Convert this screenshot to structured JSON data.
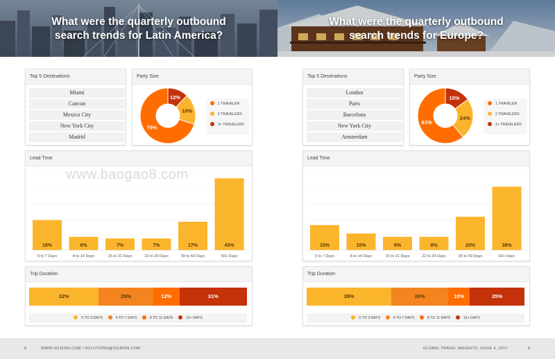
{
  "left": {
    "title": "What were the quarterly outbound search trends for Latin America?",
    "top5": {
      "label": "Top 5 Destinations",
      "items": [
        "Miami",
        "Cancun",
        "Mexico City",
        "New York City",
        "Madrid"
      ]
    },
    "party": {
      "label": "Party Size",
      "slices": [
        {
          "name": "1 TRAVELER",
          "value": 70,
          "label": "70%"
        },
        {
          "name": "2 TRAVELERS",
          "value": 18,
          "label": "18%"
        },
        {
          "name": "3+ TRAVELERS",
          "value": 12,
          "label": "12%"
        }
      ]
    },
    "lead": {
      "label": "Lead Time",
      "chart_data": {
        "type": "bar",
        "categories": [
          "0 to 7 Days",
          "8 to 14 Days",
          "15 to 21 Days",
          "22 to 29 Days",
          "30 to 59 Days",
          "60+ Days"
        ],
        "values": [
          18,
          8,
          7,
          7,
          17,
          43
        ],
        "value_labels": [
          "18%",
          "8%",
          "7%",
          "7%",
          "17%",
          "43%"
        ],
        "ylim": [
          0,
          46
        ]
      }
    },
    "duration": {
      "label": "Trip Duration",
      "segments": [
        {
          "value": 32,
          "label": "32%"
        },
        {
          "value": 25,
          "label": "25%"
        },
        {
          "value": 12,
          "label": "12%"
        },
        {
          "value": 31,
          "label": "31%"
        }
      ],
      "legend": [
        "0 TO 3 DAYS",
        "4 TO 7 DAYS",
        "8 TO 11 DAYS",
        "12+ DAYS"
      ]
    },
    "watermark": "www.baogao8.com"
  },
  "right": {
    "title": "What were the quarterly outbound search trends for Europe?",
    "top5": {
      "label": "Top 5 Destinations",
      "items": [
        "London",
        "Paris",
        "Barcelona",
        "New York City",
        "Amsterdam"
      ]
    },
    "party": {
      "label": "Party Size",
      "slices": [
        {
          "name": "1 TRAVELER",
          "value": 61,
          "label": "61%"
        },
        {
          "name": "2 TRAVELERS",
          "value": 24,
          "label": "24%"
        },
        {
          "name": "3+ TRAVELERS",
          "value": 15,
          "label": "15%"
        }
      ]
    },
    "lead": {
      "label": "Lead Time",
      "chart_data": {
        "type": "bar",
        "categories": [
          "0 to 7 Days",
          "8 to 14 Days",
          "15 to 21 Days",
          "22 to 29 Days",
          "30 to 59 Days",
          "60+ Days"
        ],
        "values": [
          15,
          10,
          8,
          8,
          20,
          38
        ],
        "value_labels": [
          "15%",
          "10%",
          "8%",
          "8%",
          "20%",
          "38%"
        ],
        "ylim": [
          0,
          46
        ]
      }
    },
    "duration": {
      "label": "Trip Duration",
      "segments": [
        {
          "value": 39,
          "label": "39%"
        },
        {
          "value": 26,
          "label": "26%"
        },
        {
          "value": 10,
          "label": "10%"
        },
        {
          "value": 25,
          "label": "25%"
        }
      ],
      "legend": [
        "0 TO 3 DAYS",
        "4 TO 7 DAYS",
        "8 TO 11 DAYS",
        "12+ DAYS"
      ]
    }
  },
  "colors": {
    "party": [
      "#ff6d00",
      "#fbb52d",
      "#c43209"
    ],
    "duration": [
      "#fbb52d",
      "#f4841f",
      "#ff6d00",
      "#c43209"
    ],
    "bar": "#fbb52d"
  },
  "footer": {
    "left_page_number": "8",
    "links": "WWW.SOJERN.COM  /  SOLUTIONS@SOJERN.COM",
    "publication": "GLOBAL TRAVEL INSIGHTS: ISSUE 4, 2017",
    "right_page_number": "9"
  }
}
